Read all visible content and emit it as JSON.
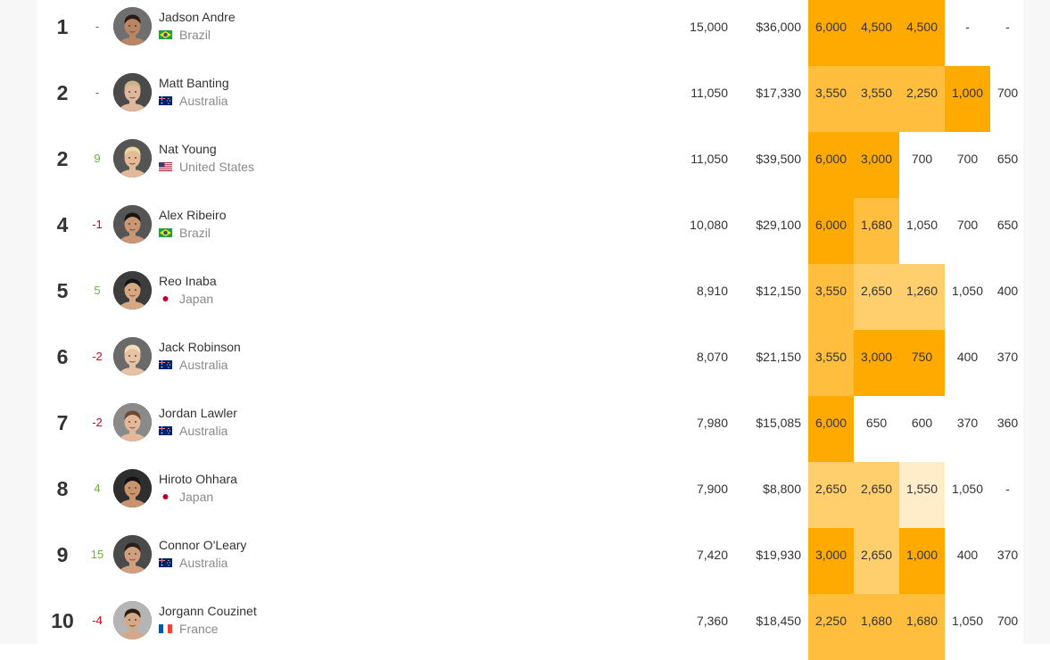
{
  "rows": [
    {
      "rank": "1",
      "change": "-",
      "trend": "none",
      "name": "Jadson Andre",
      "country": "Brazil",
      "flag": "brazil-flag-icon",
      "points": "15,000",
      "prize": "$36,000",
      "results": [
        "6,000",
        "4,500",
        "4,500",
        "-",
        "-"
      ],
      "levels": [
        "full",
        "full",
        "full",
        "none",
        "none"
      ],
      "avatar_skin": "#b98663",
      "avatar_hair": "#2a1c12",
      "avatar_bg": "#6f6f6f"
    },
    {
      "rank": "2",
      "change": "-",
      "trend": "none",
      "name": "Matt Banting",
      "country": "Australia",
      "flag": "australia-flag-icon",
      "points": "11,050",
      "prize": "$17,330",
      "results": [
        "3,550",
        "3,550",
        "2,250",
        "1,000",
        "700"
      ],
      "levels": [
        "mid",
        "mid",
        "mid",
        "full",
        "none"
      ],
      "avatar_skin": "#e0b79a",
      "avatar_hair": "#c9b48a",
      "avatar_bg": "#4a4a4a"
    },
    {
      "rank": "2",
      "change": "9",
      "trend": "up",
      "name": "Nat Young",
      "country": "United States",
      "flag": "usa-flag-icon",
      "points": "11,050",
      "prize": "$39,500",
      "results": [
        "6,000",
        "3,000",
        "700",
        "700",
        "650"
      ],
      "levels": [
        "full",
        "full",
        "none",
        "none",
        "none"
      ],
      "avatar_skin": "#e3b99a",
      "avatar_hair": "#e9d8a0",
      "avatar_bg": "#555555"
    },
    {
      "rank": "4",
      "change": "-1",
      "trend": "down",
      "name": "Alex Ribeiro",
      "country": "Brazil",
      "flag": "brazil-flag-icon",
      "points": "10,080",
      "prize": "$29,100",
      "results": [
        "6,000",
        "1,680",
        "1,050",
        "700",
        "650"
      ],
      "levels": [
        "full",
        "mid",
        "none",
        "none",
        "none"
      ],
      "avatar_skin": "#c99775",
      "avatar_hair": "#1d140e",
      "avatar_bg": "#555555"
    },
    {
      "rank": "5",
      "change": "5",
      "trend": "up",
      "name": "Reo Inaba",
      "country": "Japan",
      "flag": "japan-flag-icon",
      "points": "8,910",
      "prize": "$12,150",
      "results": [
        "3,550",
        "2,650",
        "1,260",
        "1,050",
        "400"
      ],
      "levels": [
        "mid",
        "light",
        "light",
        "none",
        "none"
      ],
      "avatar_skin": "#d6a882",
      "avatar_hair": "#151515",
      "avatar_bg": "#3d3d3d"
    },
    {
      "rank": "6",
      "change": "-2",
      "trend": "down",
      "name": "Jack Robinson",
      "country": "Australia",
      "flag": "australia-flag-icon",
      "points": "8,070",
      "prize": "$21,150",
      "results": [
        "3,550",
        "3,000",
        "750",
        "400",
        "370"
      ],
      "levels": [
        "mid",
        "full",
        "full",
        "none",
        "none"
      ],
      "avatar_skin": "#e8c2a4",
      "avatar_hair": "#efe0b8",
      "avatar_bg": "#6a6a6a"
    },
    {
      "rank": "7",
      "change": "-2",
      "trend": "down",
      "name": "Jordan Lawler",
      "country": "Australia",
      "flag": "australia-flag-icon",
      "points": "7,980",
      "prize": "$15,085",
      "results": [
        "6,000",
        "650",
        "600",
        "370",
        "360"
      ],
      "levels": [
        "full",
        "none",
        "none",
        "none",
        "none"
      ],
      "avatar_skin": "#e4b99b",
      "avatar_hair": "#6b4a30",
      "avatar_bg": "#8a8a8a"
    },
    {
      "rank": "8",
      "change": "4",
      "trend": "up",
      "name": "Hiroto Ohhara",
      "country": "Japan",
      "flag": "japan-flag-icon",
      "points": "7,900",
      "prize": "$8,800",
      "results": [
        "2,650",
        "2,650",
        "1,550",
        "1,050",
        "-"
      ],
      "levels": [
        "light",
        "light",
        "pale",
        "none",
        "none"
      ],
      "avatar_skin": "#c9946d",
      "avatar_hair": "#121212",
      "avatar_bg": "#2e2e2e"
    },
    {
      "rank": "9",
      "change": "15",
      "trend": "up",
      "name": "Connor O'Leary",
      "country": "Australia",
      "flag": "australia-flag-icon",
      "points": "7,420",
      "prize": "$19,930",
      "results": [
        "3,000",
        "2,650",
        "1,000",
        "400",
        "370"
      ],
      "levels": [
        "full",
        "light",
        "full",
        "none",
        "none"
      ],
      "avatar_skin": "#cf9f7e",
      "avatar_hair": "#2b2018",
      "avatar_bg": "#4a4a4a"
    },
    {
      "rank": "10",
      "change": "-4",
      "trend": "down",
      "name": "Jorgann Couzinet",
      "country": "France",
      "flag": "france-flag-icon",
      "points": "7,360",
      "prize": "$18,450",
      "results": [
        "2,250",
        "1,680",
        "1,680",
        "1,050",
        "700"
      ],
      "levels": [
        "mid",
        "mid",
        "mid",
        "none",
        "none"
      ],
      "avatar_skin": "#d5a988",
      "avatar_hair": "#2a1d14",
      "avatar_bg": "#b5b5b5"
    }
  ],
  "colors": {
    "trend_up": "#6cb33f",
    "trend_down": "#d0021b",
    "result_full": "#ffaa00",
    "result_mid": "#ffbe3d",
    "result_light": "#ffcf6e",
    "result_pale": "#ffedc9",
    "result_none": "transparent"
  }
}
